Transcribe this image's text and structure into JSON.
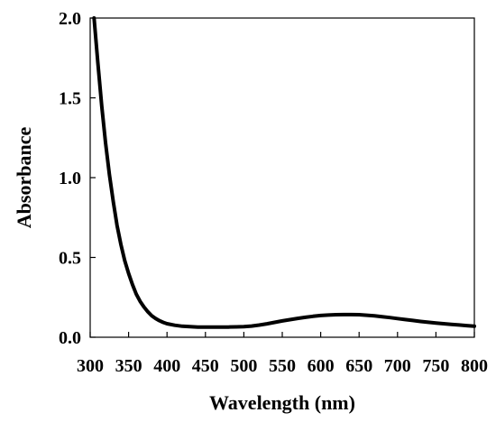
{
  "chart_data": {
    "type": "line",
    "title": "",
    "xlabel": "Wavelength (nm)",
    "ylabel": "Absorbance",
    "xlim": [
      300,
      800
    ],
    "ylim": [
      0,
      2.0
    ],
    "x_ticks": [
      300,
      350,
      400,
      450,
      500,
      550,
      600,
      650,
      700,
      750,
      800
    ],
    "y_ticks": [
      0,
      0.5,
      1.0,
      1.5,
      2.0
    ],
    "x_tick_labels": [
      "300",
      "350",
      "400",
      "450",
      "500",
      "550",
      "600",
      "650",
      "700",
      "750",
      "800"
    ],
    "y_tick_labels": [
      "0.0",
      "0.5",
      "1.0",
      "1.5",
      "2.0"
    ],
    "grid": false,
    "legend": "none",
    "series": [
      {
        "color": "#000000",
        "x": [
          305,
          310,
          315,
          320,
          325,
          330,
          335,
          340,
          345,
          350,
          355,
          360,
          365,
          370,
          375,
          380,
          385,
          390,
          395,
          400,
          410,
          420,
          430,
          440,
          450,
          460,
          470,
          480,
          490,
          500,
          510,
          520,
          530,
          540,
          550,
          560,
          570,
          580,
          590,
          600,
          610,
          620,
          630,
          640,
          650,
          660,
          670,
          680,
          690,
          700,
          710,
          720,
          730,
          740,
          750,
          760,
          770,
          780,
          790,
          800
        ],
        "y": [
          2.0,
          1.72,
          1.45,
          1.22,
          1.02,
          0.85,
          0.7,
          0.58,
          0.48,
          0.4,
          0.33,
          0.27,
          0.225,
          0.19,
          0.16,
          0.135,
          0.118,
          0.104,
          0.093,
          0.085,
          0.075,
          0.069,
          0.066,
          0.064,
          0.063,
          0.063,
          0.063,
          0.064,
          0.065,
          0.066,
          0.07,
          0.076,
          0.084,
          0.093,
          0.102,
          0.11,
          0.118,
          0.125,
          0.131,
          0.136,
          0.139,
          0.141,
          0.142,
          0.142,
          0.141,
          0.138,
          0.134,
          0.129,
          0.123,
          0.117,
          0.111,
          0.105,
          0.099,
          0.094,
          0.089,
          0.085,
          0.081,
          0.077,
          0.073,
          0.069
        ]
      }
    ]
  }
}
